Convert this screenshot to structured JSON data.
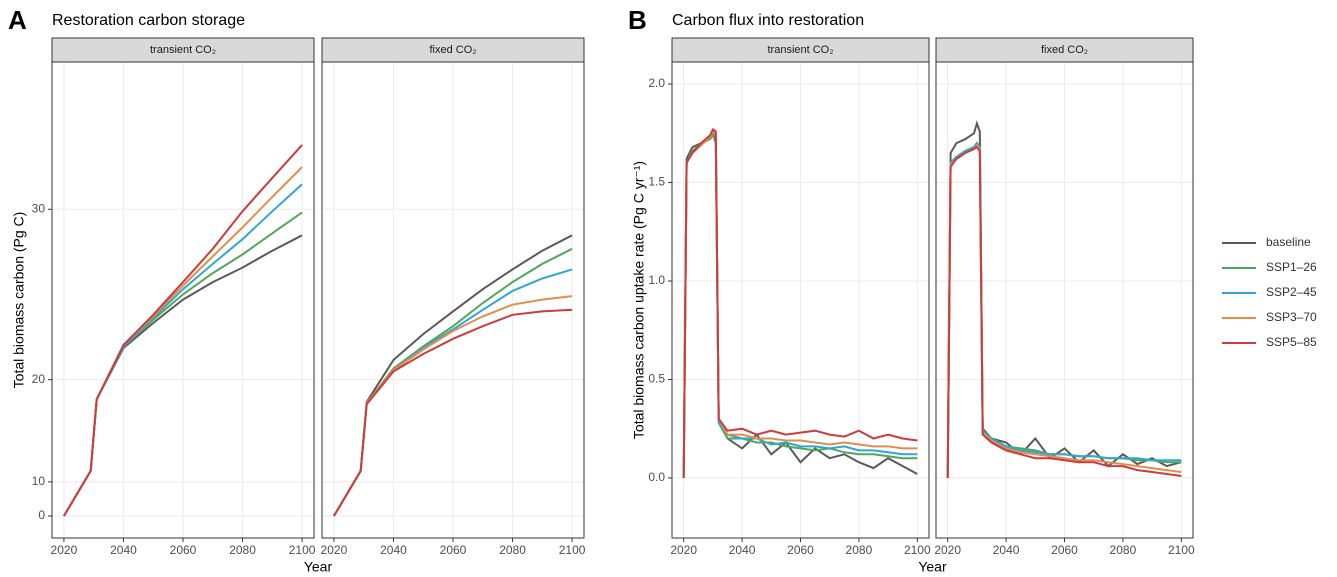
{
  "chart_data": [
    {
      "type": "line",
      "tag": "A",
      "title": "Restoration carbon storage",
      "facet": "transient CO₂",
      "ylabel": "Total biomass carbon (Pg C)",
      "xlabel": "Year",
      "yscale": "square",
      "ylim": [
        -8.04,
        36.5
      ],
      "yticks": [
        0,
        10,
        20,
        30
      ],
      "xlim": [
        2016,
        2104
      ],
      "xticks": [
        2020,
        2040,
        2060,
        2080,
        2100
      ],
      "grid": true,
      "x": [
        2020,
        2029,
        2031,
        2040,
        2050,
        2060,
        2070,
        2080,
        2090,
        2100
      ],
      "series": [
        {
          "name": "baseline",
          "color": "#5a5a5a",
          "values": [
            0,
            11.5,
            18.5,
            22.2,
            23.8,
            25.2,
            26.2,
            27,
            27.9,
            28.7
          ]
        },
        {
          "name": "SSP1–26",
          "color": "#4fa85a",
          "values": [
            0,
            11.5,
            18.5,
            22.3,
            24,
            25.5,
            26.7,
            27.7,
            28.8,
            29.85
          ]
        },
        {
          "name": "SSP2–45",
          "color": "#2ca8d2",
          "values": [
            0,
            11.5,
            18.5,
            22.3,
            24.1,
            25.8,
            27.2,
            28.5,
            29.9,
            31.2
          ]
        },
        {
          "name": "SSP3–70",
          "color": "#e08e4c",
          "values": [
            0,
            11.5,
            18.5,
            22.4,
            24.2,
            26,
            27.6,
            29.1,
            30.6,
            32
          ]
        },
        {
          "name": "SSP5–85",
          "color": "#cc3c3e",
          "values": [
            0,
            11.5,
            18.5,
            22.4,
            24.3,
            26.2,
            28,
            29.9,
            31.5,
            33
          ]
        }
      ]
    },
    {
      "type": "line",
      "facet": "fixed CO₂",
      "yscale": "square",
      "ylim": [
        -8.04,
        36.5
      ],
      "yticks": [
        0,
        10,
        20,
        30
      ],
      "xlim": [
        2016,
        2104
      ],
      "xticks": [
        2020,
        2040,
        2060,
        2080,
        2100
      ],
      "grid": true,
      "x": [
        2020,
        2029,
        2031,
        2040,
        2050,
        2060,
        2070,
        2080,
        2090,
        2100
      ],
      "series": [
        {
          "name": "baseline",
          "color": "#5a5a5a",
          "values": [
            0,
            11.5,
            18.3,
            21.4,
            23.1,
            24.5,
            25.8,
            26.9,
            27.9,
            28.7
          ]
        },
        {
          "name": "SSP1–26",
          "color": "#4fa85a",
          "values": [
            0,
            11.5,
            18.2,
            20.8,
            22.3,
            23.6,
            25,
            26.2,
            27.2,
            28
          ]
        },
        {
          "name": "SSP2–45",
          "color": "#2ca8d2",
          "values": [
            0,
            11.5,
            18.2,
            20.7,
            22.2,
            23.4,
            24.6,
            25.7,
            26.4,
            26.9
          ]
        },
        {
          "name": "SSP3–70",
          "color": "#e08e4c",
          "values": [
            0,
            11.5,
            18.2,
            20.7,
            22.1,
            23.3,
            24.2,
            24.9,
            25.2,
            25.4
          ]
        },
        {
          "name": "SSP5–85",
          "color": "#cc3c3e",
          "values": [
            0,
            11.5,
            18.1,
            20.6,
            21.8,
            22.8,
            23.6,
            24.3,
            24.5,
            24.6
          ]
        }
      ]
    },
    {
      "type": "line",
      "tag": "B",
      "title": "Carbon flux into restoration",
      "facet": "transient CO₂",
      "ylabel": "Total biomass carbon uptake rate (Pg C yr⁻¹)",
      "xlabel": "Year",
      "yscale": "linear",
      "ylim": [
        -0.305,
        2.112
      ],
      "yticks": [
        {
          "value": 0,
          "label": "0.0"
        },
        {
          "value": 0.5,
          "label": "0.5"
        },
        {
          "value": 1,
          "label": "1.0"
        },
        {
          "value": 1.5,
          "label": "1.5"
        },
        {
          "value": 2,
          "label": "2.0"
        }
      ],
      "xlim": [
        2016,
        2104
      ],
      "xticks": [
        2020,
        2040,
        2060,
        2080,
        2100
      ],
      "grid": true,
      "x": [
        2020,
        2021,
        2023,
        2026,
        2029,
        2030,
        2031,
        2032,
        2035,
        2040,
        2045,
        2050,
        2055,
        2060,
        2065,
        2070,
        2075,
        2080,
        2085,
        2090,
        2095,
        2100
      ],
      "series": [
        {
          "name": "baseline",
          "color": "#5a5a5a",
          "values": [
            0,
            1.62,
            1.68,
            1.7,
            1.73,
            1.75,
            1.7,
            0.3,
            0.2,
            0.15,
            0.22,
            0.12,
            0.18,
            0.08,
            0.15,
            0.1,
            0.12,
            0.08,
            0.05,
            0.1,
            0.06,
            0.02
          ]
        },
        {
          "name": "SSP1–26",
          "color": "#4fa85a",
          "values": [
            0,
            1.6,
            1.66,
            1.7,
            1.72,
            1.74,
            1.72,
            0.28,
            0.2,
            0.2,
            0.18,
            0.18,
            0.16,
            0.15,
            0.14,
            0.15,
            0.13,
            0.12,
            0.12,
            0.11,
            0.1,
            0.1
          ]
        },
        {
          "name": "SSP2–45",
          "color": "#2ca8d2",
          "values": [
            0,
            1.6,
            1.65,
            1.7,
            1.73,
            1.76,
            1.73,
            0.28,
            0.22,
            0.2,
            0.2,
            0.17,
            0.18,
            0.16,
            0.16,
            0.15,
            0.16,
            0.14,
            0.14,
            0.13,
            0.12,
            0.12
          ]
        },
        {
          "name": "SSP3–70",
          "color": "#e08e4c",
          "values": [
            0,
            1.6,
            1.65,
            1.69,
            1.73,
            1.76,
            1.74,
            0.3,
            0.22,
            0.22,
            0.2,
            0.2,
            0.19,
            0.19,
            0.18,
            0.17,
            0.18,
            0.17,
            0.16,
            0.16,
            0.15,
            0.15
          ]
        },
        {
          "name": "SSP5–85",
          "color": "#cc3c3e",
          "values": [
            0,
            1.6,
            1.65,
            1.7,
            1.74,
            1.77,
            1.76,
            0.3,
            0.24,
            0.25,
            0.22,
            0.24,
            0.22,
            0.23,
            0.24,
            0.22,
            0.21,
            0.24,
            0.2,
            0.22,
            0.2,
            0.19
          ]
        }
      ]
    },
    {
      "type": "line",
      "facet": "fixed CO₂",
      "legend": true,
      "yscale": "linear",
      "ylim": [
        -0.305,
        2.112
      ],
      "yticks": [
        0,
        0.5,
        1,
        1.5,
        2
      ],
      "xlim": [
        2016,
        2104
      ],
      "xticks": [
        2020,
        2040,
        2060,
        2080,
        2100
      ],
      "grid": true,
      "x": [
        2020,
        2021,
        2023,
        2026,
        2029,
        2030,
        2031,
        2032,
        2035,
        2040,
        2045,
        2050,
        2055,
        2060,
        2065,
        2070,
        2075,
        2080,
        2085,
        2090,
        2095,
        2100
      ],
      "series": [
        {
          "name": "baseline",
          "color": "#5a5a5a",
          "values": [
            0,
            1.65,
            1.7,
            1.72,
            1.75,
            1.8,
            1.76,
            0.25,
            0.2,
            0.18,
            0.12,
            0.2,
            0.1,
            0.15,
            0.08,
            0.14,
            0.06,
            0.12,
            0.07,
            0.1,
            0.06,
            0.08
          ]
        },
        {
          "name": "SSP1–26",
          "color": "#4fa85a",
          "values": [
            0,
            1.6,
            1.63,
            1.66,
            1.68,
            1.7,
            1.68,
            0.24,
            0.2,
            0.16,
            0.15,
            0.14,
            0.12,
            0.12,
            0.11,
            0.11,
            0.1,
            0.1,
            0.09,
            0.09,
            0.08,
            0.08
          ]
        },
        {
          "name": "SSP2–45",
          "color": "#2ca8d2",
          "values": [
            0,
            1.6,
            1.63,
            1.66,
            1.68,
            1.7,
            1.68,
            0.24,
            0.2,
            0.16,
            0.14,
            0.13,
            0.12,
            0.12,
            0.11,
            0.11,
            0.1,
            0.1,
            0.1,
            0.09,
            0.09,
            0.09
          ]
        },
        {
          "name": "SSP3–70",
          "color": "#e08e4c",
          "values": [
            0,
            1.59,
            1.62,
            1.65,
            1.67,
            1.69,
            1.67,
            0.23,
            0.19,
            0.15,
            0.13,
            0.12,
            0.11,
            0.1,
            0.09,
            0.09,
            0.08,
            0.07,
            0.06,
            0.05,
            0.04,
            0.03
          ]
        },
        {
          "name": "SSP5–85",
          "color": "#cc3c3e",
          "values": [
            0,
            1.58,
            1.62,
            1.65,
            1.67,
            1.68,
            1.66,
            0.22,
            0.18,
            0.14,
            0.12,
            0.1,
            0.1,
            0.09,
            0.08,
            0.08,
            0.06,
            0.06,
            0.04,
            0.03,
            0.02,
            0.01
          ]
        }
      ]
    }
  ]
}
